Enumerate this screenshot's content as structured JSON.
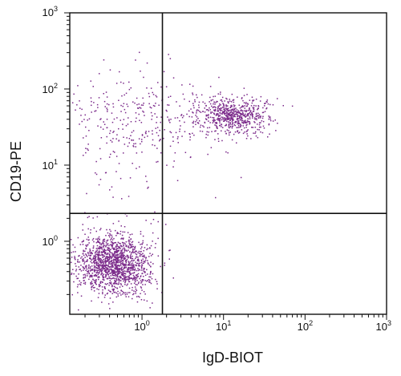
{
  "chart_data": {
    "type": "scatter",
    "xlabel": "IgD-BIOT",
    "ylabel": "CD19-PE",
    "x_scale": "log",
    "y_scale": "log",
    "xlim": [
      0.13,
      1000
    ],
    "ylim": [
      0.11,
      1000
    ],
    "grid": false,
    "point_color": "#7b2a8a",
    "quadrant_gate": {
      "x": 1.78,
      "y": 2.32
    },
    "x_ticks": [
      {
        "base": "10",
        "exp": "0",
        "value": 1
      },
      {
        "base": "10",
        "exp": "1",
        "value": 10
      },
      {
        "base": "10",
        "exp": "2",
        "value": 100
      },
      {
        "base": "10",
        "exp": "3",
        "value": 1000
      }
    ],
    "y_ticks": [
      {
        "base": "10",
        "exp": "0",
        "value": 1
      },
      {
        "base": "10",
        "exp": "1",
        "value": 10
      },
      {
        "base": "10",
        "exp": "2",
        "value": 100
      },
      {
        "base": "10",
        "exp": "3",
        "value": 1000
      }
    ],
    "populations": [
      {
        "x_center": 0.45,
        "y_center": 0.5,
        "x_spread_decades": 0.22,
        "y_spread_decades": 0.2,
        "count": 1500
      },
      {
        "x_center": 13,
        "y_center": 45,
        "x_spread_decades": 0.22,
        "y_spread_decades": 0.12,
        "count": 650
      },
      {
        "x_center": 0.9,
        "y_center": 40,
        "x_spread_decades": 0.55,
        "y_spread_decades": 0.3,
        "count": 320
      },
      {
        "x_center": 0.8,
        "y_center": 5,
        "x_spread_decades": 0.45,
        "y_spread_decades": 0.4,
        "count": 40
      }
    ]
  }
}
